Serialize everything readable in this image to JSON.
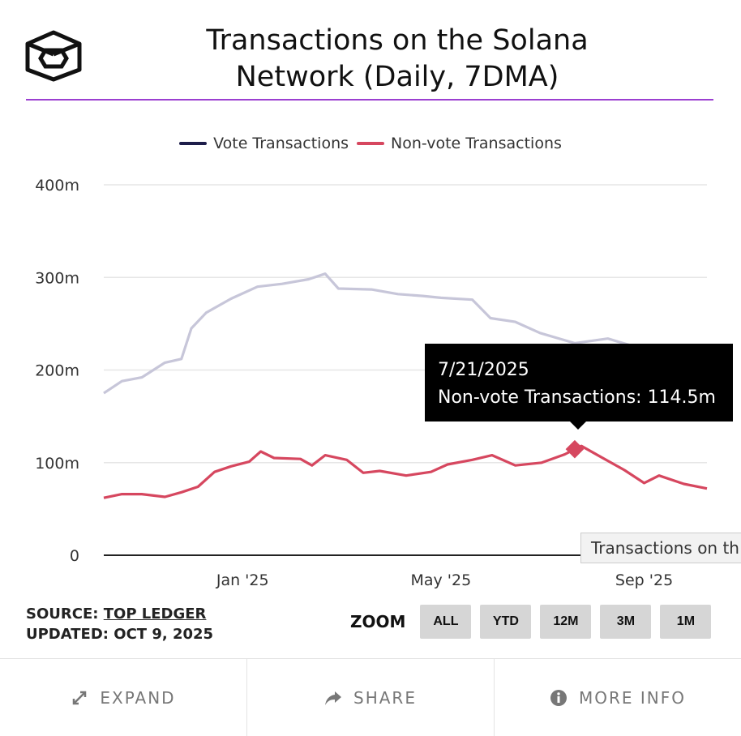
{
  "header": {
    "title_line1": "Transactions on the Solana",
    "title_line2": "Network (Daily, 7DMA)"
  },
  "colors": {
    "vote": "#c7c6d9",
    "vote_legend": "#1d1d4a",
    "nonvote": "#d6475f",
    "title_rule": "#9b3fd1",
    "grid": "#e6e6e6"
  },
  "chart_data": {
    "type": "line",
    "title": "Transactions on the Solana Network (Daily, 7DMA)",
    "ylabel": "",
    "xlabel": "",
    "ylim": [
      0,
      400
    ],
    "y_unit": "m",
    "yticks": [
      "0",
      "100m",
      "200m",
      "300m",
      "400m"
    ],
    "xticks": [
      {
        "label": "Jan '25",
        "date": "2025-01-01"
      },
      {
        "label": "May '25",
        "date": "2025-05-01"
      },
      {
        "label": "Sep '25",
        "date": "2025-09-01"
      }
    ],
    "x_range": [
      "2024-10-09",
      "2025-10-09"
    ],
    "legend_position": "top-center",
    "grid": true,
    "series": [
      {
        "name": "Vote Transactions",
        "points": [
          [
            "2024-10-09",
            175
          ],
          [
            "2024-10-20",
            188
          ],
          [
            "2024-11-01",
            192
          ],
          [
            "2024-11-15",
            208
          ],
          [
            "2024-11-25",
            212
          ],
          [
            "2024-12-01",
            245
          ],
          [
            "2024-12-10",
            262
          ],
          [
            "2024-12-25",
            277
          ],
          [
            "2025-01-10",
            290
          ],
          [
            "2025-01-25",
            293
          ],
          [
            "2025-02-10",
            298
          ],
          [
            "2025-02-20",
            304
          ],
          [
            "2025-02-28",
            288
          ],
          [
            "2025-03-20",
            287
          ],
          [
            "2025-04-05",
            282
          ],
          [
            "2025-04-20",
            280
          ],
          [
            "2025-05-01",
            278
          ],
          [
            "2025-05-20",
            276
          ],
          [
            "2025-05-31",
            256
          ],
          [
            "2025-06-15",
            252
          ],
          [
            "2025-06-30",
            240
          ],
          [
            "2025-07-21",
            229
          ],
          [
            "2025-08-10",
            234
          ],
          [
            "2025-08-25",
            226
          ]
        ]
      },
      {
        "name": "Non-vote Transactions",
        "points": [
          [
            "2024-10-09",
            62
          ],
          [
            "2024-10-20",
            66
          ],
          [
            "2024-11-01",
            66
          ],
          [
            "2024-11-15",
            63
          ],
          [
            "2024-11-25",
            68
          ],
          [
            "2024-12-05",
            74
          ],
          [
            "2024-12-15",
            90
          ],
          [
            "2024-12-25",
            96
          ],
          [
            "2025-01-05",
            101
          ],
          [
            "2025-01-12",
            112
          ],
          [
            "2025-01-20",
            105
          ],
          [
            "2025-02-05",
            104
          ],
          [
            "2025-02-12",
            97
          ],
          [
            "2025-02-20",
            108
          ],
          [
            "2025-03-05",
            103
          ],
          [
            "2025-03-15",
            89
          ],
          [
            "2025-03-25",
            91
          ],
          [
            "2025-04-10",
            86
          ],
          [
            "2025-04-25",
            90
          ],
          [
            "2025-05-05",
            98
          ],
          [
            "2025-05-20",
            103
          ],
          [
            "2025-06-01",
            108
          ],
          [
            "2025-06-15",
            97
          ],
          [
            "2025-07-01",
            100
          ],
          [
            "2025-07-15",
            109
          ],
          [
            "2025-07-21",
            114.5
          ],
          [
            "2025-07-25",
            118
          ],
          [
            "2025-08-05",
            107
          ],
          [
            "2025-08-20",
            92
          ],
          [
            "2025-09-01",
            78
          ],
          [
            "2025-09-10",
            86
          ],
          [
            "2025-09-25",
            77
          ],
          [
            "2025-10-09",
            72
          ]
        ]
      }
    ],
    "highlight": {
      "series": "Non-vote Transactions",
      "date": "2025-07-21",
      "value": 114.5
    }
  },
  "legend": {
    "vote_label": "Vote Transactions",
    "nonvote_label": "Non-vote Transactions"
  },
  "tooltip": {
    "date": "7/21/2025",
    "text": "Non-vote Transactions: 114.5m",
    "secondary": "Transactions on th"
  },
  "source": {
    "prefix": "SOURCE:",
    "name": "TOP LEDGER",
    "updated": "UPDATED: OCT 9, 2025"
  },
  "zoom": {
    "label": "ZOOM",
    "buttons": [
      "ALL",
      "YTD",
      "12M",
      "3M",
      "1M"
    ]
  },
  "footer": {
    "expand": "EXPAND",
    "share": "SHARE",
    "more_info": "MORE INFO"
  }
}
